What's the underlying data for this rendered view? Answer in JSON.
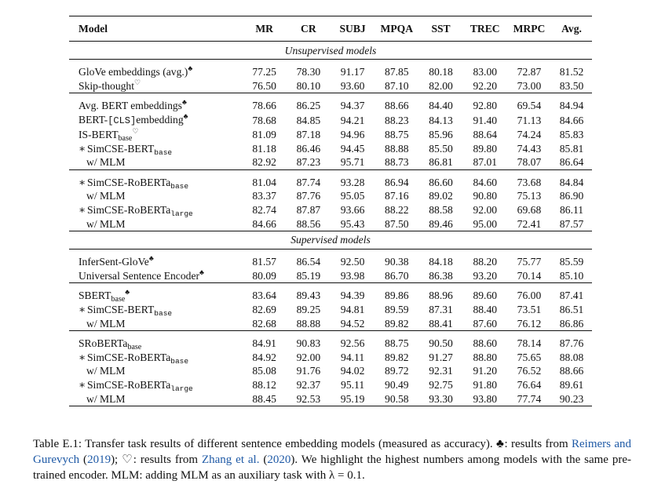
{
  "headers": [
    "Model",
    "MR",
    "CR",
    "SUBJ",
    "MPQA",
    "SST",
    "TREC",
    "MRPC",
    "Avg."
  ],
  "sections": {
    "unsup": "Unsupervised models",
    "sup": "Supervised models"
  },
  "symbols": {
    "club": "♣",
    "heart": "♡",
    "star": "∗"
  },
  "names": {
    "glove": "GloVe embeddings (avg.)",
    "skip": "Skip-thought",
    "avgbert": "Avg. BERT embeddings",
    "bertcls_a": "BERT-",
    "bertcls_tt": "[CLS]",
    "bertcls_b": "embedding",
    "isbert": "IS-BERT",
    "simcse_bert": "SimCSE-BERT",
    "simcse_roberta": "SimCSE-RoBERTa",
    "wmlm": "w/ MLM",
    "infersent": "InferSent-GloVe",
    "use": "Universal Sentence Encoder",
    "sbert": "SBERT",
    "sroberta": "SRoBERTa",
    "base": "base",
    "large": "large"
  },
  "rows": {
    "glove": [
      "77.25",
      "78.30",
      "91.17",
      "87.85",
      "80.18",
      "83.00",
      "72.87",
      "81.52"
    ],
    "skip": [
      "76.50",
      "80.10",
      "93.60",
      "87.10",
      "82.00",
      "92.20",
      "73.00",
      "83.50"
    ],
    "avgbert": [
      "78.66",
      "86.25",
      "94.37",
      "88.66",
      "84.40",
      "92.80",
      "69.54",
      "84.94"
    ],
    "bertcls": [
      "78.68",
      "84.85",
      "94.21",
      "88.23",
      "84.13",
      "91.40",
      "71.13",
      "84.66"
    ],
    "isbert": [
      "81.09",
      "87.18",
      "94.96",
      "88.75",
      "85.96",
      "88.64",
      "74.24",
      "85.83"
    ],
    "u_simcse_bert": [
      "81.18",
      "86.46",
      "94.45",
      "88.88",
      "85.50",
      "89.80",
      "74.43",
      "85.81"
    ],
    "u_simcse_bert_mlm": [
      "82.92",
      "87.23",
      "95.71",
      "88.73",
      "86.81",
      "87.01",
      "78.07",
      "86.64"
    ],
    "u_simcse_rb": [
      "81.04",
      "87.74",
      "93.28",
      "86.94",
      "86.60",
      "84.60",
      "73.68",
      "84.84"
    ],
    "u_simcse_rb_mlm": [
      "83.37",
      "87.76",
      "95.05",
      "87.16",
      "89.02",
      "90.80",
      "75.13",
      "86.90"
    ],
    "u_simcse_rl": [
      "82.74",
      "87.87",
      "93.66",
      "88.22",
      "88.58",
      "92.00",
      "69.68",
      "86.11"
    ],
    "u_simcse_rl_mlm": [
      "84.66",
      "88.56",
      "95.43",
      "87.50",
      "89.46",
      "95.00",
      "72.41",
      "87.57"
    ],
    "infersent": [
      "81.57",
      "86.54",
      "92.50",
      "90.38",
      "84.18",
      "88.20",
      "75.77",
      "85.59"
    ],
    "use": [
      "80.09",
      "85.19",
      "93.98",
      "86.70",
      "86.38",
      "93.20",
      "70.14",
      "85.10"
    ],
    "sbert": [
      "83.64",
      "89.43",
      "94.39",
      "89.86",
      "88.96",
      "89.60",
      "76.00",
      "87.41"
    ],
    "s_simcse_bert": [
      "82.69",
      "89.25",
      "94.81",
      "89.59",
      "87.31",
      "88.40",
      "73.51",
      "86.51"
    ],
    "s_simcse_bert_mlm": [
      "82.68",
      "88.88",
      "94.52",
      "89.82",
      "88.41",
      "87.60",
      "76.12",
      "86.86"
    ],
    "sroberta": [
      "84.91",
      "90.83",
      "92.56",
      "88.75",
      "90.50",
      "88.60",
      "78.14",
      "87.76"
    ],
    "s_simcse_rb": [
      "84.92",
      "92.00",
      "94.11",
      "89.82",
      "91.27",
      "88.80",
      "75.65",
      "88.08"
    ],
    "s_simcse_rb_mlm": [
      "85.08",
      "91.76",
      "94.02",
      "89.72",
      "92.31",
      "91.20",
      "76.52",
      "88.66"
    ],
    "s_simcse_rl": [
      "88.12",
      "92.37",
      "95.11",
      "90.49",
      "92.75",
      "91.80",
      "76.64",
      "89.61"
    ],
    "s_simcse_rl_mlm": [
      "88.45",
      "92.53",
      "95.19",
      "90.58",
      "93.30",
      "93.80",
      "77.74",
      "90.23"
    ]
  },
  "bold": {
    "avgbert": [
      5
    ],
    "u_simcse_bert": [
      3
    ],
    "u_simcse_bert_mlm": [
      0,
      1,
      2,
      4,
      6,
      7
    ],
    "u_simcse_rb_mlm": [
      0,
      1,
      2,
      3,
      4,
      5,
      6,
      7
    ],
    "u_simcse_rl": [
      3
    ],
    "u_simcse_rl_mlm": [
      0,
      1,
      2,
      4,
      5,
      6,
      7
    ],
    "sbert": [
      0,
      1,
      3,
      4,
      5,
      7
    ],
    "s_simcse_bert": [
      2
    ],
    "s_simcse_bert_mlm": [
      6
    ],
    "sroberta": [
      6
    ],
    "s_simcse_rb": [
      1,
      2,
      3
    ],
    "s_simcse_rb_mlm": [
      0,
      4,
      5,
      7
    ],
    "s_simcse_rl_mlm": [
      0,
      1,
      2,
      3,
      4,
      5,
      6,
      7
    ]
  },
  "caption": {
    "part1": "Table E.1: Transfer task results of different sentence embedding models (measured as accuracy). ",
    "club": "♣",
    "part2": ": results from ",
    "cite1_a": "Reimers and Gurevych",
    "cite1_p1": " (",
    "cite1_y": "2019",
    "cite1_p2": "); ",
    "heart": "♡",
    "part3": ": results from ",
    "cite2_a": "Zhang et al.",
    "cite2_p1": " (",
    "cite2_y": "2020",
    "cite2_p2": ").",
    "part4": " We highlight the highest numbers among models with the same pre-trained encoder. MLM: adding MLM as an auxiliary task with λ = 0.1."
  }
}
